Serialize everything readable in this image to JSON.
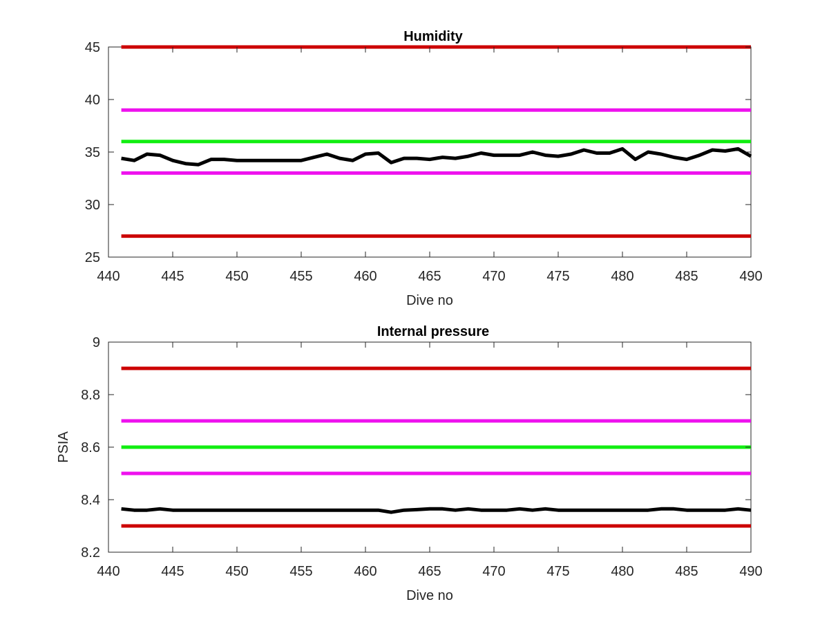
{
  "chart_data": [
    {
      "type": "line",
      "title": "Humidity",
      "xlabel": "Dive no",
      "ylabel": "",
      "xlim": [
        440,
        490
      ],
      "ylim": [
        25,
        45
      ],
      "xticks": [
        440,
        445,
        450,
        455,
        460,
        465,
        470,
        475,
        480,
        485,
        490
      ],
      "yticks": [
        25,
        30,
        35,
        40,
        45
      ],
      "grid": false,
      "thresholds": [
        {
          "y": 45,
          "color": "#cc0000"
        },
        {
          "y": 39,
          "color": "#ee11ee"
        },
        {
          "y": 36,
          "color": "#11ee11"
        },
        {
          "y": 33,
          "color": "#ee11ee"
        },
        {
          "y": 27,
          "color": "#cc0000"
        }
      ],
      "series": [
        {
          "color": "#000000",
          "x": [
            441,
            442,
            443,
            444,
            445,
            446,
            447,
            448,
            449,
            450,
            451,
            452,
            453,
            454,
            455,
            456,
            457,
            458,
            459,
            460,
            461,
            462,
            463,
            464,
            465,
            466,
            467,
            468,
            469,
            470,
            471,
            472,
            473,
            474,
            475,
            476,
            477,
            478,
            479,
            480,
            481,
            482,
            483,
            484,
            485,
            486,
            487,
            488,
            489,
            490
          ],
          "y": [
            34.4,
            34.2,
            34.8,
            34.7,
            34.2,
            33.9,
            33.8,
            34.3,
            34.3,
            34.2,
            34.2,
            34.2,
            34.2,
            34.2,
            34.2,
            34.5,
            34.8,
            34.4,
            34.2,
            34.8,
            34.9,
            34.0,
            34.4,
            34.4,
            34.3,
            34.5,
            34.4,
            34.6,
            34.9,
            34.7,
            34.7,
            34.7,
            35.0,
            34.7,
            34.6,
            34.8,
            35.2,
            34.9,
            34.9,
            35.3,
            34.3,
            35.0,
            34.8,
            34.5,
            34.3,
            34.7,
            35.2,
            35.1,
            35.3,
            34.6
          ]
        }
      ]
    },
    {
      "type": "line",
      "title": "Internal pressure",
      "xlabel": "Dive no",
      "ylabel": "PSIA",
      "xlim": [
        440,
        490
      ],
      "ylim": [
        8.2,
        9
      ],
      "xticks": [
        440,
        445,
        450,
        455,
        460,
        465,
        470,
        475,
        480,
        485,
        490
      ],
      "yticks": [
        8.2,
        8.4,
        8.6,
        8.8,
        9
      ],
      "ytick_labels": [
        "8.2",
        "8.4",
        "8.6",
        "8.8",
        "9"
      ],
      "grid": false,
      "thresholds": [
        {
          "y": 8.9,
          "color": "#cc0000"
        },
        {
          "y": 8.7,
          "color": "#ee11ee"
        },
        {
          "y": 8.6,
          "color": "#11ee11"
        },
        {
          "y": 8.5,
          "color": "#ee11ee"
        },
        {
          "y": 8.3,
          "color": "#cc0000"
        }
      ],
      "series": [
        {
          "color": "#000000",
          "x": [
            441,
            442,
            443,
            444,
            445,
            446,
            447,
            448,
            449,
            450,
            451,
            452,
            453,
            454,
            455,
            456,
            457,
            458,
            459,
            460,
            461,
            462,
            463,
            464,
            465,
            466,
            467,
            468,
            469,
            470,
            471,
            472,
            473,
            474,
            475,
            476,
            477,
            478,
            479,
            480,
            481,
            482,
            483,
            484,
            485,
            486,
            487,
            488,
            489,
            490
          ],
          "y": [
            8.365,
            8.36,
            8.36,
            8.365,
            8.36,
            8.36,
            8.36,
            8.36,
            8.36,
            8.36,
            8.36,
            8.36,
            8.36,
            8.36,
            8.36,
            8.36,
            8.36,
            8.36,
            8.36,
            8.36,
            8.36,
            8.352,
            8.36,
            8.362,
            8.365,
            8.365,
            8.36,
            8.365,
            8.36,
            8.36,
            8.36,
            8.365,
            8.36,
            8.365,
            8.36,
            8.36,
            8.36,
            8.36,
            8.36,
            8.36,
            8.36,
            8.36,
            8.365,
            8.365,
            8.36,
            8.36,
            8.36,
            8.36,
            8.365,
            8.36
          ]
        }
      ]
    }
  ]
}
